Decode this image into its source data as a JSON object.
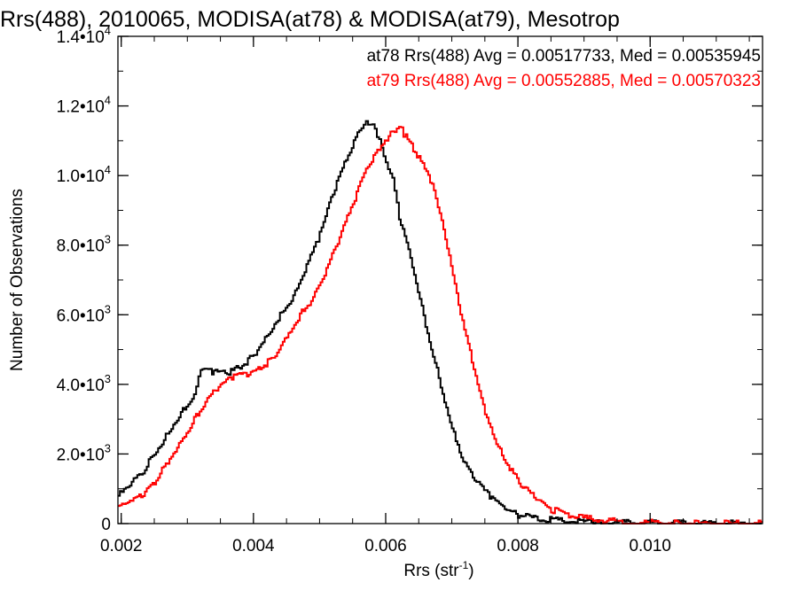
{
  "chart_data": {
    "type": "line",
    "step": true,
    "title": "Rrs(488), 2010065, MODISA(at78) & MODISA(at79), Mesotrop",
    "xlabel": "Rrs (str",
    "xlabel_sup": "-1",
    "xlabel_close": ")",
    "ylabel": "Number of Observations",
    "xlim": [
      0.00195,
      0.0117
    ],
    "ylim": [
      0,
      14000
    ],
    "grid": false,
    "x_ticks": [
      {
        "value": 0.002,
        "label": "0.002"
      },
      {
        "value": 0.004,
        "label": "0.004"
      },
      {
        "value": 0.006,
        "label": "0.006"
      },
      {
        "value": 0.008,
        "label": "0.008"
      },
      {
        "value": 0.01,
        "label": "0.010"
      }
    ],
    "y_ticks": [
      {
        "value": 0,
        "mant": "0",
        "exp": ""
      },
      {
        "value": 2000,
        "mant": "2.0•10",
        "exp": "3"
      },
      {
        "value": 4000,
        "mant": "4.0•10",
        "exp": "3"
      },
      {
        "value": 6000,
        "mant": "6.0•10",
        "exp": "3"
      },
      {
        "value": 8000,
        "mant": "8.0•10",
        "exp": "3"
      },
      {
        "value": 10000,
        "mant": "1.0•10",
        "exp": "4"
      },
      {
        "value": 12000,
        "mant": "1.2•10",
        "exp": "4"
      },
      {
        "value": 14000,
        "mant": "1.4•10",
        "exp": "4"
      }
    ],
    "annotations": [
      {
        "text": "at78 Rrs(488) Avg = 0.00517733, Med = 0.00535945",
        "color": "#000000"
      },
      {
        "text": "at79 Rrs(488) Avg = 0.00552885, Med = 0.00570323",
        "color": "#ff0000"
      }
    ],
    "series": [
      {
        "name": "at78",
        "color": "#000000",
        "points": [
          [
            0.00195,
            800
          ],
          [
            0.0021,
            1050
          ],
          [
            0.0023,
            1450
          ],
          [
            0.0025,
            2000
          ],
          [
            0.0027,
            2600
          ],
          [
            0.0029,
            3200
          ],
          [
            0.0031,
            3700
          ],
          [
            0.0032,
            4400
          ],
          [
            0.0034,
            4350
          ],
          [
            0.0036,
            4300
          ],
          [
            0.0038,
            4500
          ],
          [
            0.004,
            4850
          ],
          [
            0.0042,
            5400
          ],
          [
            0.0044,
            6000
          ],
          [
            0.0046,
            6500
          ],
          [
            0.0048,
            7400
          ],
          [
            0.005,
            8300
          ],
          [
            0.0052,
            9500
          ],
          [
            0.0054,
            10500
          ],
          [
            0.0056,
            11300
          ],
          [
            0.0057,
            11600
          ],
          [
            0.0058,
            11450
          ],
          [
            0.0059,
            11000
          ],
          [
            0.006,
            10300
          ],
          [
            0.0061,
            9900
          ],
          [
            0.0062,
            8800
          ],
          [
            0.0064,
            7400
          ],
          [
            0.0066,
            5700
          ],
          [
            0.0068,
            4200
          ],
          [
            0.007,
            2700
          ],
          [
            0.0072,
            1700
          ],
          [
            0.0074,
            1150
          ],
          [
            0.0076,
            700
          ],
          [
            0.0078,
            430
          ],
          [
            0.008,
            250
          ],
          [
            0.0083,
            140
          ],
          [
            0.0087,
            70
          ],
          [
            0.0092,
            30
          ],
          [
            0.01,
            10
          ],
          [
            0.0117,
            0
          ]
        ]
      },
      {
        "name": "at79",
        "color": "#ff0000",
        "points": [
          [
            0.00195,
            450
          ],
          [
            0.0021,
            550
          ],
          [
            0.0023,
            800
          ],
          [
            0.0025,
            1200
          ],
          [
            0.0027,
            1800
          ],
          [
            0.0029,
            2400
          ],
          [
            0.0031,
            3000
          ],
          [
            0.0033,
            3600
          ],
          [
            0.0035,
            4000
          ],
          [
            0.0037,
            4200
          ],
          [
            0.0039,
            4300
          ],
          [
            0.0041,
            4450
          ],
          [
            0.0043,
            4800
          ],
          [
            0.0045,
            5400
          ],
          [
            0.0047,
            6000
          ],
          [
            0.0049,
            6500
          ],
          [
            0.0051,
            7300
          ],
          [
            0.0053,
            8200
          ],
          [
            0.0055,
            9200
          ],
          [
            0.0057,
            10200
          ],
          [
            0.0059,
            10800
          ],
          [
            0.0061,
            11300
          ],
          [
            0.0062,
            11400
          ],
          [
            0.0063,
            11100
          ],
          [
            0.0065,
            10500
          ],
          [
            0.0067,
            9700
          ],
          [
            0.0069,
            8200
          ],
          [
            0.0071,
            6300
          ],
          [
            0.0073,
            4700
          ],
          [
            0.0075,
            3200
          ],
          [
            0.0077,
            2200
          ],
          [
            0.0079,
            1500
          ],
          [
            0.0081,
            1000
          ],
          [
            0.0083,
            650
          ],
          [
            0.0085,
            400
          ],
          [
            0.0088,
            220
          ],
          [
            0.0092,
            100
          ],
          [
            0.0097,
            40
          ],
          [
            0.0104,
            15
          ],
          [
            0.0117,
            0
          ]
        ]
      }
    ]
  }
}
